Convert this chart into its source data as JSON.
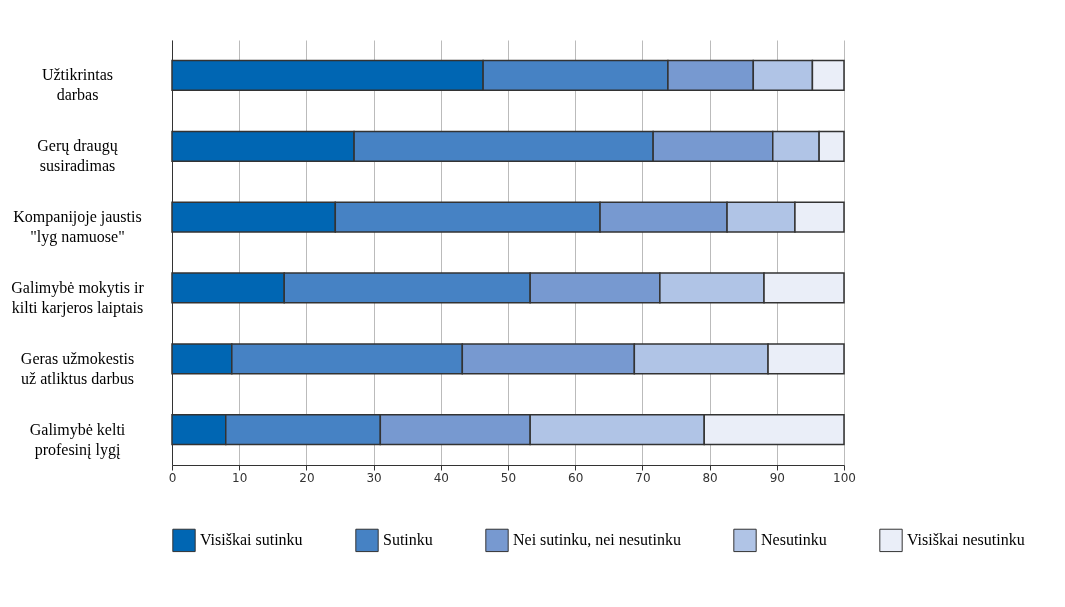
{
  "chart_data": {
    "type": "bar",
    "orientation": "horizontal",
    "stacked": true,
    "categories": [
      "Užtikrintas\ndarbas",
      "Gerų draugų\nsusiradimas",
      "Kompanijoje jaustis\n\"lyg namuose\"",
      "Galimybė mokytis ir\nkilti karjeros laiptais",
      "Geras užmokestis\nuž atliktus darbus",
      "Galimybė kelti\nprofesinį lygį"
    ],
    "series": [
      {
        "name": "Visiškai sutinku",
        "color": "#0066b3",
        "values": [
          46.3,
          27.1,
          24.3,
          16.7,
          8.9,
          8.0
        ]
      },
      {
        "name": "Sutinku",
        "color": "#4682c4",
        "values": [
          27.5,
          44.5,
          39.4,
          36.6,
          34.3,
          23.0
        ]
      },
      {
        "name": "Nei sutinku, nei nesutinku",
        "color": "#7799d0",
        "values": [
          12.7,
          17.8,
          18.9,
          19.3,
          25.6,
          22.3
        ]
      },
      {
        "name": "Nesutinku",
        "color": "#b0c4e6",
        "values": [
          8.8,
          6.9,
          10.1,
          15.5,
          19.9,
          25.9
        ]
      },
      {
        "name": "Visiškai nesutinku",
        "color": "#eaeef8",
        "values": [
          4.7,
          3.7,
          7.3,
          11.9,
          11.3,
          20.8
        ]
      }
    ],
    "xlim": [
      0,
      100
    ],
    "xticks": [
      0,
      10,
      20,
      30,
      40,
      50,
      60,
      70,
      80,
      90,
      100
    ],
    "grid": "x",
    "legend": "bottom"
  }
}
